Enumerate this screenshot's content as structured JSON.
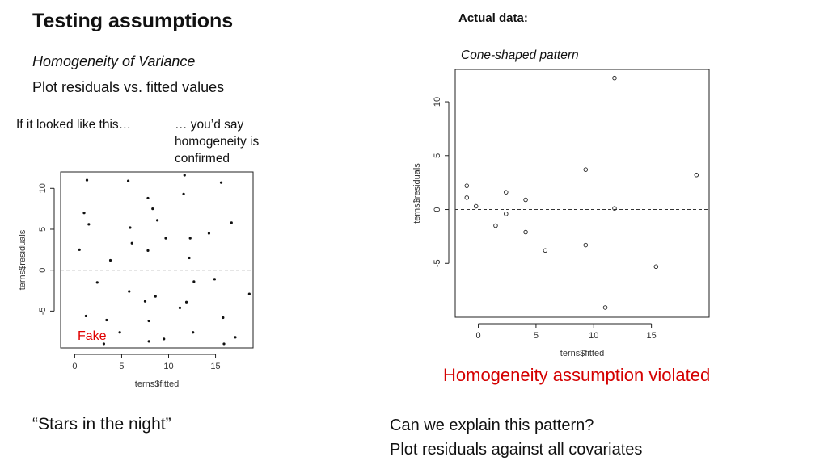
{
  "slide": {
    "title": "Testing assumptions",
    "subtitle": "Homogeneity of Variance",
    "instruction": "Plot residuals vs. fitted values",
    "left_question": "If it looked like this…",
    "right_question_lines": [
      "… you’d say",
      "homogeneity is",
      "confirmed"
    ],
    "fake_label": "Fake",
    "stars_caption": "“Stars in the night”",
    "actual_label": "Actual data:",
    "cone_label": "Cone-shaped pattern",
    "violated_text": "Homogeneity assumption violated",
    "explain_lines": [
      "Can we explain this pattern?",
      "Plot residuals against all covariates"
    ],
    "colors": {
      "violated": "#d40000",
      "fake": "#e00000"
    }
  },
  "chart_data": [
    {
      "type": "scatter",
      "xlabel": "terns$fitted",
      "ylabel": "terns$residuals",
      "xlim": [
        -1.5,
        19
      ],
      "ylim": [
        -9.5,
        12
      ],
      "x_ticks": [
        0,
        5,
        10,
        15
      ],
      "y_ticks": [
        -5,
        0,
        5,
        10
      ],
      "reference_line": 0,
      "marker": "filled-dot",
      "points": [
        [
          1.3,
          11.0
        ],
        [
          5.7,
          10.9
        ],
        [
          11.7,
          11.6
        ],
        [
          15.6,
          10.7
        ],
        [
          11.6,
          9.3
        ],
        [
          7.8,
          8.8
        ],
        [
          8.3,
          7.5
        ],
        [
          1.0,
          7.0
        ],
        [
          8.8,
          6.1
        ],
        [
          1.5,
          5.6
        ],
        [
          16.7,
          5.8
        ],
        [
          5.9,
          5.2
        ],
        [
          14.3,
          4.5
        ],
        [
          9.7,
          3.9
        ],
        [
          12.3,
          3.9
        ],
        [
          6.1,
          3.3
        ],
        [
          0.5,
          2.5
        ],
        [
          7.8,
          2.4
        ],
        [
          12.2,
          1.5
        ],
        [
          3.8,
          1.2
        ],
        [
          2.4,
          -1.5
        ],
        [
          12.7,
          -1.4
        ],
        [
          14.9,
          -1.1
        ],
        [
          5.8,
          -2.6
        ],
        [
          18.6,
          -2.9
        ],
        [
          8.6,
          -3.2
        ],
        [
          7.5,
          -3.8
        ],
        [
          11.9,
          -3.9
        ],
        [
          11.2,
          -4.6
        ],
        [
          1.2,
          -5.6
        ],
        [
          15.8,
          -5.8
        ],
        [
          7.9,
          -6.2
        ],
        [
          3.4,
          -6.1
        ],
        [
          4.8,
          -7.6
        ],
        [
          12.6,
          -7.6
        ],
        [
          9.5,
          -8.4
        ],
        [
          17.1,
          -8.2
        ],
        [
          7.9,
          -8.7
        ],
        [
          3.1,
          -9.0
        ],
        [
          15.9,
          -9.0
        ]
      ]
    },
    {
      "type": "scatter",
      "xlabel": "terns$fitted",
      "ylabel": "terns$residuals",
      "xlim": [
        -2,
        20
      ],
      "ylim": [
        -10,
        13
      ],
      "x_ticks": [
        0,
        5,
        10,
        15
      ],
      "y_ticks": [
        -5,
        0,
        5,
        10
      ],
      "reference_line": 0,
      "marker": "open-circle",
      "points": [
        [
          -1.0,
          2.2
        ],
        [
          -1.0,
          1.1
        ],
        [
          -0.2,
          0.3
        ],
        [
          1.5,
          -1.5
        ],
        [
          2.4,
          1.6
        ],
        [
          2.4,
          -0.4
        ],
        [
          4.1,
          0.9
        ],
        [
          4.1,
          -2.1
        ],
        [
          5.8,
          -3.8
        ],
        [
          9.3,
          3.7
        ],
        [
          9.3,
          -3.3
        ],
        [
          11.0,
          -9.1
        ],
        [
          11.8,
          12.2
        ],
        [
          11.8,
          0.1
        ],
        [
          15.4,
          -5.3
        ],
        [
          18.9,
          3.2
        ]
      ]
    }
  ]
}
